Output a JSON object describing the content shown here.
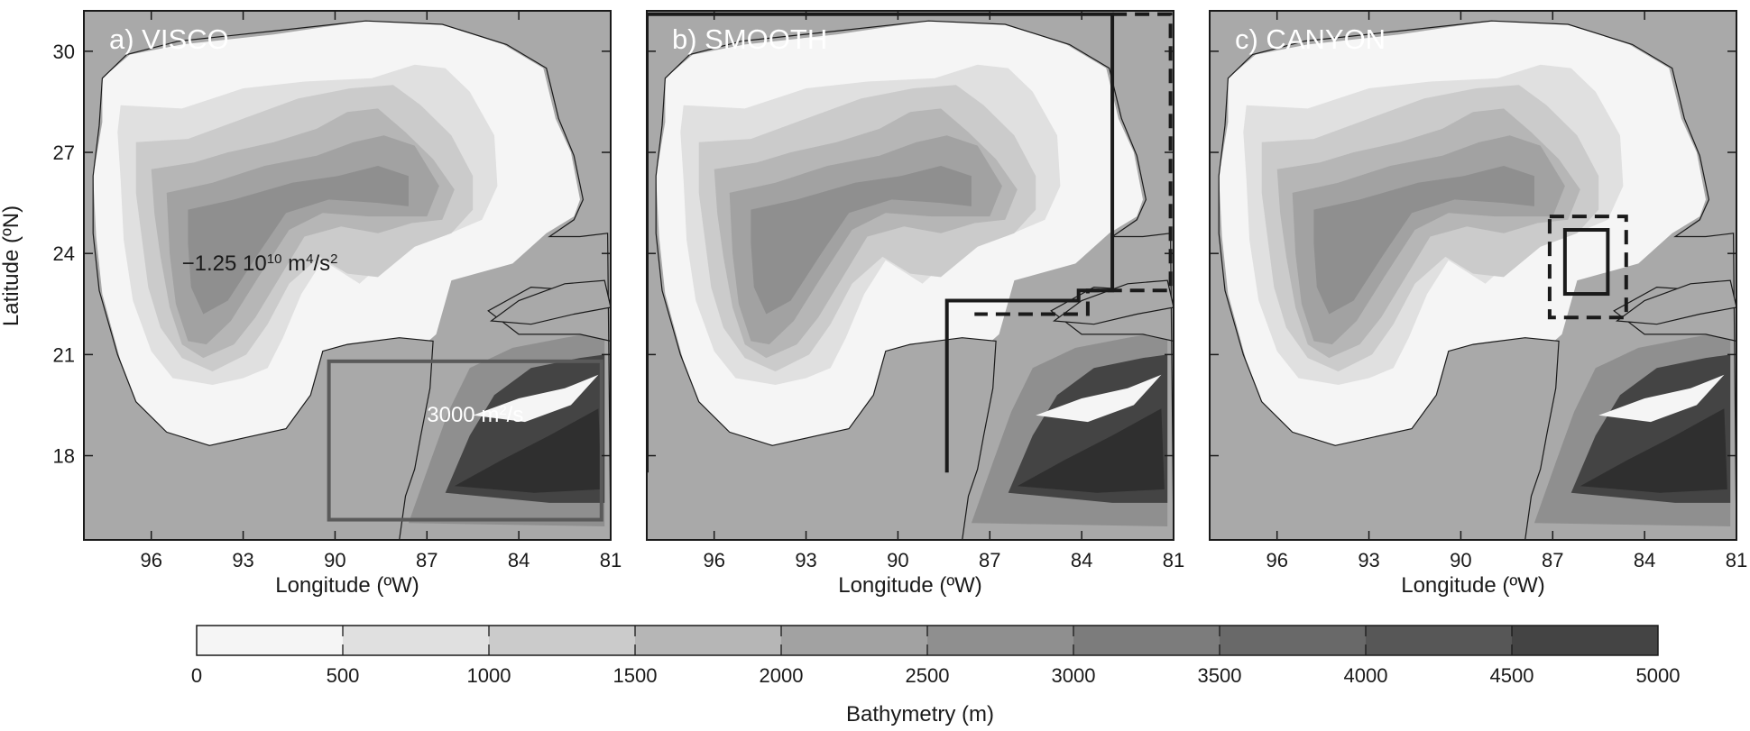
{
  "figure": {
    "ylabel": "Latitude (ºN)",
    "xlabel": "Longitude (ºW)",
    "lat_ticks": [
      "30",
      "27",
      "24",
      "21",
      "18"
    ],
    "lon_ticks": [
      "96",
      "93",
      "90",
      "87",
      "84",
      "81"
    ],
    "lon_range_w": [
      98.2,
      81
    ],
    "lat_range_n": [
      15.5,
      31.2
    ]
  },
  "panels": [
    {
      "id": "visco",
      "label": "a) VISCO",
      "annotations": [
        {
          "id": "visc-neg",
          "base": "−1.25 10",
          "sup": "10",
          "rest": " m",
          "sup2": "4",
          "rest2": "/s",
          "sup3": "2",
          "lon": 95.0,
          "lat": 23.5,
          "color": "#1a1a1a"
        },
        {
          "id": "visc-pos",
          "base": "3000 m",
          "sup": "2",
          "rest": "/s",
          "sup2": "",
          "rest2": "",
          "sup3": "",
          "lon": 87.0,
          "lat": 19.0,
          "color": "#ffffff"
        }
      ],
      "boxes": [
        {
          "id": "visc-box",
          "style": "solid",
          "color": "#5a5a5a",
          "lon": [
            90.2,
            81.3
          ],
          "lat": [
            16.1,
            20.8
          ]
        }
      ]
    },
    {
      "id": "smooth",
      "label": "b) SMOOTH",
      "annotations": [],
      "boxes": [
        {
          "id": "smooth-poly",
          "style": "solid",
          "color": "#1a1a1a",
          "path": [
            [
              98.2,
              17.5
            ],
            [
              98.2,
              31.1
            ],
            [
              83.0,
              31.1
            ],
            [
              83.0,
              22.9
            ],
            [
              84.1,
              22.9
            ],
            [
              84.1,
              22.6
            ],
            [
              88.4,
              22.6
            ],
            [
              88.4,
              17.5
            ]
          ]
        },
        {
          "id": "smooth-dash",
          "style": "dashed",
          "color": "#1a1a1a",
          "path": [
            [
              83.0,
              31.1
            ],
            [
              81.1,
              31.1
            ],
            [
              81.1,
              22.9
            ],
            [
              83.8,
              22.9
            ],
            [
              83.8,
              22.2
            ],
            [
              87.5,
              22.2
            ]
          ]
        }
      ]
    },
    {
      "id": "canyon",
      "label": "c) CANYON",
      "annotations": [],
      "boxes": [
        {
          "id": "canyon-outer",
          "style": "dashed",
          "color": "#1a1a1a",
          "lon": [
            87.1,
            84.6
          ],
          "lat": [
            22.1,
            25.1
          ]
        },
        {
          "id": "canyon-inner",
          "style": "solid",
          "color": "#1a1a1a",
          "lon": [
            86.6,
            85.2
          ],
          "lat": [
            22.8,
            24.7
          ]
        }
      ]
    }
  ],
  "colorbar": {
    "title": "Bathymetry (m)",
    "ticks": [
      "0",
      "500",
      "1000",
      "1500",
      "2000",
      "2500",
      "3000",
      "3500",
      "4000",
      "4500",
      "5000"
    ],
    "colors": [
      "#f5f5f5",
      "#e0e0e0",
      "#cbcbcb",
      "#b6b6b6",
      "#a2a2a2",
      "#8f8f8f",
      "#7c7c7c",
      "#696969",
      "#575757",
      "#444444",
      "#2f2f2f"
    ]
  },
  "bathymetry": {
    "land_color": "#a9a9a9",
    "contours": [
      {
        "depth": 0,
        "color": "#f5f5f5",
        "pts": [
          [
            97.6,
            29.2
          ],
          [
            96.7,
            29.9
          ],
          [
            95,
            30.2
          ],
          [
            92,
            30.5
          ],
          [
            89,
            30.9
          ],
          [
            86.5,
            30.8
          ],
          [
            84.5,
            30.2
          ],
          [
            83.2,
            29.5
          ],
          [
            82.8,
            28.0
          ],
          [
            82.3,
            27.0
          ],
          [
            82.0,
            25.6
          ],
          [
            82.2,
            25.1
          ],
          [
            83.1,
            24.6
          ],
          [
            84.2,
            23.7
          ],
          [
            86.2,
            23.2
          ],
          [
            86.7,
            21.6
          ],
          [
            87.2,
            21.2
          ],
          [
            88.5,
            21.2
          ],
          [
            89.6,
            21.2
          ],
          [
            90.4,
            21.0
          ],
          [
            90.8,
            19.8
          ],
          [
            91.6,
            18.7
          ],
          [
            92.5,
            18.6
          ],
          [
            94.0,
            18.3
          ],
          [
            95.5,
            18.6
          ],
          [
            96.4,
            19.4
          ],
          [
            97.0,
            20.8
          ],
          [
            97.6,
            22.8
          ],
          [
            97.8,
            24.5
          ],
          [
            97.9,
            26.3
          ],
          [
            97.6,
            27.9
          ]
        ]
      },
      {
        "depth": 500,
        "color": "#e0e0e0",
        "pts": [
          [
            97.0,
            28.4
          ],
          [
            95.0,
            28.3
          ],
          [
            93.0,
            28.9
          ],
          [
            91.0,
            29.1
          ],
          [
            88.8,
            29.2
          ],
          [
            87.4,
            29.6
          ],
          [
            86.4,
            29.5
          ],
          [
            85.6,
            28.8
          ],
          [
            84.8,
            27.5
          ],
          [
            84.7,
            26.0
          ],
          [
            85.2,
            25.0
          ],
          [
            86.5,
            24.5
          ],
          [
            87.8,
            24.4
          ],
          [
            88.6,
            23.6
          ],
          [
            89.2,
            23.1
          ],
          [
            90.4,
            23.8
          ],
          [
            91.1,
            22.8
          ],
          [
            91.7,
            21.5
          ],
          [
            92.2,
            20.6
          ],
          [
            93.0,
            20.3
          ],
          [
            94.0,
            20.1
          ],
          [
            95.3,
            20.3
          ],
          [
            96.0,
            21.1
          ],
          [
            96.6,
            22.6
          ],
          [
            96.9,
            24.4
          ],
          [
            97.0,
            26.2
          ],
          [
            97.1,
            27.6
          ]
        ]
      },
      {
        "depth": 1000,
        "color": "#cbcbcb",
        "pts": [
          [
            96.5,
            27.3
          ],
          [
            94.8,
            27.4
          ],
          [
            93.0,
            28.0
          ],
          [
            91.2,
            28.6
          ],
          [
            89.5,
            28.9
          ],
          [
            88.1,
            29.0
          ],
          [
            87.2,
            28.4
          ],
          [
            86.2,
            27.5
          ],
          [
            85.5,
            26.3
          ],
          [
            85.5,
            25.3
          ],
          [
            86.2,
            24.6
          ],
          [
            87.4,
            24.2
          ],
          [
            88.6,
            23.3
          ],
          [
            89.6,
            23.4
          ],
          [
            90.5,
            23.9
          ],
          [
            91.5,
            23.1
          ],
          [
            92.2,
            21.9
          ],
          [
            92.9,
            21.0
          ],
          [
            94.0,
            20.5
          ],
          [
            95.0,
            20.9
          ],
          [
            95.7,
            21.8
          ],
          [
            96.1,
            23.0
          ],
          [
            96.3,
            24.4
          ],
          [
            96.5,
            25.8
          ]
        ]
      },
      {
        "depth": 2000,
        "color": "#b6b6b6",
        "pts": [
          [
            96.0,
            26.5
          ],
          [
            94.6,
            26.7
          ],
          [
            93.5,
            27.0
          ],
          [
            92.0,
            27.3
          ],
          [
            90.6,
            27.7
          ],
          [
            89.6,
            28.2
          ],
          [
            88.6,
            28.3
          ],
          [
            87.7,
            27.6
          ],
          [
            86.8,
            26.8
          ],
          [
            86.1,
            25.9
          ],
          [
            86.5,
            25.0
          ],
          [
            87.5,
            24.9
          ],
          [
            88.6,
            24.6
          ],
          [
            89.8,
            24.8
          ],
          [
            91.0,
            24.5
          ],
          [
            91.8,
            23.3
          ],
          [
            92.6,
            22.1
          ],
          [
            93.3,
            21.3
          ],
          [
            94.3,
            20.9
          ],
          [
            95.0,
            21.3
          ],
          [
            95.4,
            22.4
          ],
          [
            95.7,
            23.9
          ],
          [
            95.9,
            25.2
          ]
        ]
      },
      {
        "depth": 2500,
        "color": "#a2a2a2",
        "pts": [
          [
            95.5,
            25.8
          ],
          [
            94.0,
            26.1
          ],
          [
            92.3,
            26.6
          ],
          [
            90.6,
            26.9
          ],
          [
            89.4,
            27.3
          ],
          [
            88.4,
            27.5
          ],
          [
            87.4,
            27.2
          ],
          [
            86.6,
            26.0
          ],
          [
            87.0,
            25.1
          ],
          [
            88.0,
            25.1
          ],
          [
            88.9,
            25.1
          ],
          [
            90.4,
            25.2
          ],
          [
            91.5,
            24.7
          ],
          [
            92.5,
            23.3
          ],
          [
            93.4,
            22.0
          ],
          [
            94.2,
            21.3
          ],
          [
            94.8,
            21.4
          ],
          [
            95.2,
            22.5
          ],
          [
            95.4,
            24.0
          ]
        ]
      }
    ],
    "caribbean": [
      {
        "color": "#8f8f8f",
        "pts": [
          [
            87.6,
            16.0
          ],
          [
            86.9,
            17.8
          ],
          [
            86.3,
            19.3
          ],
          [
            85.6,
            20.6
          ],
          [
            84.2,
            21.2
          ],
          [
            82.5,
            21.5
          ],
          [
            81.2,
            21.7
          ],
          [
            81.2,
            15.9
          ]
        ]
      },
      {
        "color": "#444444",
        "pts": [
          [
            86.4,
            16.9
          ],
          [
            85.6,
            18.6
          ],
          [
            84.8,
            19.8
          ],
          [
            83.6,
            20.6
          ],
          [
            82.0,
            20.9
          ],
          [
            81.2,
            21.0
          ],
          [
            81.2,
            16.6
          ],
          [
            83.0,
            16.6
          ]
        ]
      },
      {
        "color": "#f5f5f5",
        "pts": [
          [
            85.5,
            19.2
          ],
          [
            84.0,
            19.7
          ],
          [
            82.5,
            20.0
          ],
          [
            81.4,
            20.4
          ],
          [
            82.3,
            19.5
          ],
          [
            83.8,
            19.0
          ]
        ]
      },
      {
        "color": "#2f2f2f",
        "pts": [
          [
            86.1,
            17.1
          ],
          [
            84.5,
            17.9
          ],
          [
            83.0,
            18.6
          ],
          [
            81.4,
            19.4
          ],
          [
            81.3,
            17.0
          ],
          [
            83.5,
            16.9
          ]
        ]
      }
    ],
    "land_overlay": [
      {
        "color": "#a9a9a9",
        "pts": [
          [
            98.2,
            15.5
          ],
          [
            98.2,
            31.2
          ],
          [
            81.0,
            31.2
          ],
          [
            81.0,
            22.6
          ],
          [
            82.0,
            22.9
          ],
          [
            83.6,
            23.0
          ],
          [
            85.0,
            22.3
          ],
          [
            84.0,
            21.6
          ],
          [
            82.0,
            21.6
          ],
          [
            81.0,
            21.4
          ],
          [
            81.0,
            15.5
          ],
          [
            87.9,
            15.5
          ],
          [
            87.7,
            16.8
          ],
          [
            87.4,
            17.6
          ],
          [
            87.2,
            18.6
          ],
          [
            86.9,
            20.0
          ],
          [
            86.8,
            21.4
          ],
          [
            87.9,
            21.5
          ],
          [
            89.6,
            21.3
          ],
          [
            90.4,
            21.1
          ],
          [
            90.8,
            19.8
          ],
          [
            91.6,
            18.8
          ],
          [
            92.6,
            18.6
          ],
          [
            94.1,
            18.3
          ],
          [
            95.5,
            18.7
          ],
          [
            96.5,
            19.6
          ],
          [
            97.1,
            21.0
          ],
          [
            97.7,
            22.9
          ],
          [
            97.9,
            24.6
          ],
          [
            97.9,
            26.3
          ],
          [
            97.7,
            27.8
          ],
          [
            97.6,
            29.2
          ],
          [
            96.8,
            29.9
          ],
          [
            95.1,
            30.3
          ],
          [
            92.0,
            30.6
          ],
          [
            89.0,
            30.9
          ],
          [
            86.5,
            30.8
          ],
          [
            84.4,
            30.2
          ],
          [
            83.1,
            29.5
          ],
          [
            82.7,
            28.0
          ],
          [
            82.2,
            26.9
          ],
          [
            81.9,
            25.6
          ],
          [
            82.2,
            25.0
          ],
          [
            83.0,
            24.5
          ],
          [
            82.0,
            24.5
          ],
          [
            81.1,
            24.6
          ],
          [
            81.0,
            15.5
          ]
        ]
      }
    ]
  }
}
